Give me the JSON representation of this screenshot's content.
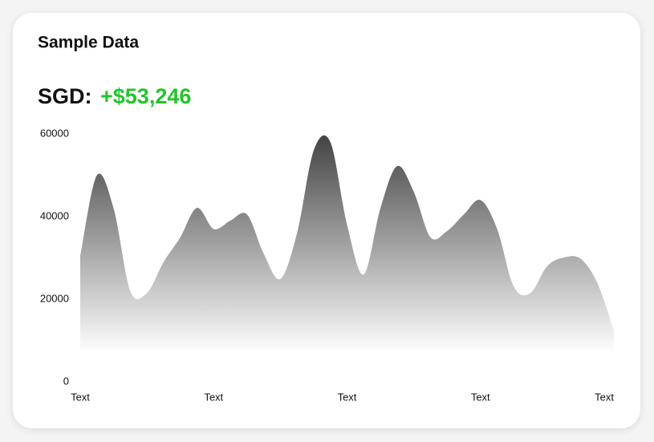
{
  "chart_data": {
    "type": "area",
    "title": "Sample Data",
    "currency_label": "SGD:",
    "total": "+$53,246",
    "total_color": "#22c52a",
    "categories": [
      "Text",
      null,
      null,
      null,
      null,
      null,
      null,
      null,
      "Text",
      null,
      null,
      null,
      null,
      null,
      null,
      null,
      "Text",
      null,
      null,
      null,
      null,
      null,
      null,
      null,
      "Text",
      null,
      null,
      null,
      null,
      null,
      null,
      null,
      "Text"
    ],
    "values": [
      30500,
      50000,
      42000,
      22000,
      21500,
      29000,
      35000,
      42100,
      37000,
      39000,
      40500,
      31000,
      24900,
      36000,
      56000,
      58000,
      38000,
      26000,
      42000,
      52200,
      46000,
      35000,
      36500,
      40500,
      44000,
      37000,
      23000,
      21500,
      28000,
      30100,
      29800,
      24000,
      12400
    ],
    "color": "#3a3a3a",
    "ylim": [
      0,
      60000
    ],
    "yticks": [
      0,
      20000,
      40000,
      60000
    ]
  }
}
